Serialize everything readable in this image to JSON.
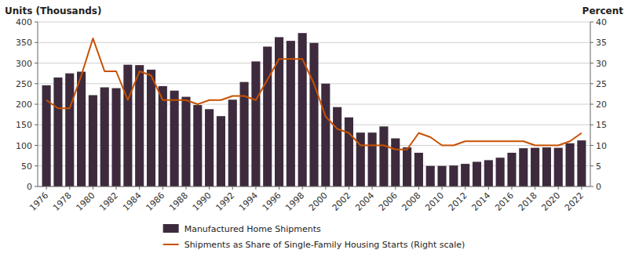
{
  "chart_data": {
    "type": "bar",
    "ylabel": "Units (Thousands)",
    "y2label": "Percent",
    "x": [
      1976,
      1977,
      1978,
      1979,
      1980,
      1981,
      1982,
      1983,
      1984,
      1985,
      1986,
      1987,
      1988,
      1989,
      1990,
      1991,
      1992,
      1993,
      1994,
      1995,
      1996,
      1997,
      1998,
      1999,
      2000,
      2001,
      2002,
      2003,
      2004,
      2005,
      2006,
      2007,
      2008,
      2009,
      2010,
      2011,
      2012,
      2013,
      2014,
      2015,
      2016,
      2017,
      2018,
      2019,
      2020,
      2021,
      2022
    ],
    "series": [
      {
        "name": "Manufactured Home Shipments",
        "type": "bar",
        "color": "#3d2b3d",
        "values": [
          246,
          265,
          275,
          279,
          222,
          241,
          239,
          296,
          295,
          284,
          244,
          233,
          218,
          198,
          188,
          171,
          211,
          254,
          304,
          340,
          363,
          354,
          373,
          349,
          250,
          193,
          168,
          131,
          131,
          146,
          117,
          95,
          82,
          50,
          50,
          51,
          55,
          60,
          64,
          70,
          82,
          93,
          94,
          95,
          94,
          105,
          112
        ]
      },
      {
        "name": "Shipments as Share of Single-Family Housing Starts (Right scale)",
        "type": "line",
        "color": "#c85000",
        "axis": "y2",
        "values": [
          21,
          19,
          19,
          27,
          36,
          28,
          28,
          21,
          28,
          27,
          21,
          21,
          21,
          20,
          21,
          21,
          22,
          22,
          21,
          26,
          31,
          31,
          31,
          25,
          17,
          14,
          13,
          10,
          10,
          10,
          9,
          9,
          13,
          12,
          10,
          10,
          11,
          11,
          11,
          11,
          11,
          11,
          10,
          10,
          10,
          11,
          13
        ]
      }
    ],
    "xlim": [
      1975.25,
      2022.75
    ],
    "xticks": [
      1976,
      1978,
      1980,
      1982,
      1984,
      1986,
      1988,
      1990,
      1992,
      1994,
      1996,
      1998,
      2000,
      2002,
      2004,
      2006,
      2008,
      2010,
      2012,
      2014,
      2016,
      2018,
      2020,
      2022
    ],
    "ylim": [
      0,
      400
    ],
    "yticks": [
      0,
      50,
      100,
      150,
      200,
      250,
      300,
      350,
      400
    ],
    "y2lim": [
      0,
      40
    ],
    "y2ticks": [
      0,
      5,
      10,
      15,
      20,
      25,
      30,
      35,
      40
    ],
    "grid": true,
    "legend": "bottom"
  }
}
